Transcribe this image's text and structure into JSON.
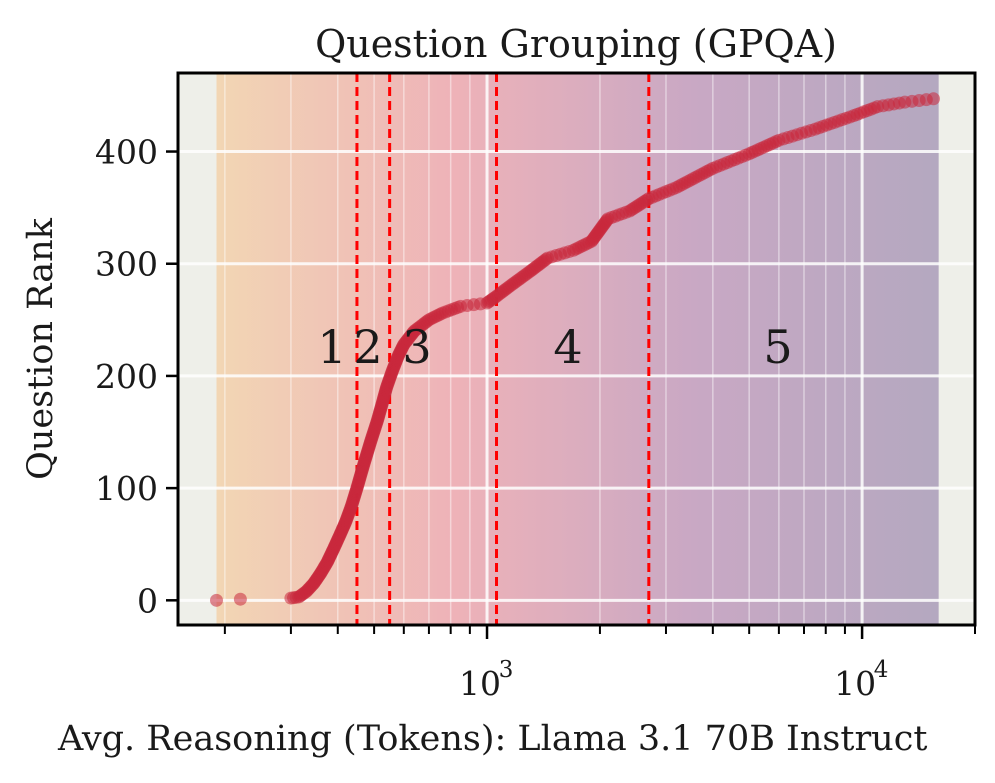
{
  "chart_data": {
    "type": "scatter",
    "title": "Question Grouping (GPQA)",
    "xlabel": "Avg. Reasoning (Tokens): Llama 3.1 70B Instruct",
    "ylabel": "Question Rank",
    "xscale": "log",
    "xlim": [
      150,
      20000
    ],
    "ylim": [
      -22,
      470
    ],
    "yticks": [
      0,
      100,
      200,
      300,
      400
    ],
    "ytick_labels": [
      "0",
      "100",
      "200",
      "300",
      "400"
    ],
    "xticks_major": [
      1000,
      10000
    ],
    "xtick_labels": [
      "10",
      "10"
    ],
    "xtick_exponents": [
      "3",
      "4"
    ],
    "grid": true,
    "legend": "none",
    "colors": {
      "background": "#eeefe9",
      "points": "#c8283c",
      "dividers": "#ff0000",
      "band_gradient": [
        "#f2d6b4",
        "#eeb2b8",
        "#c9a8c4",
        "#b4a8c0"
      ]
    },
    "bands": [
      {
        "label": "1",
        "x_start": 190,
        "x_end": 450
      },
      {
        "label": "2",
        "x_start": 450,
        "x_end": 550
      },
      {
        "label": "3",
        "x_start": 550,
        "x_end": 1060
      },
      {
        "label": "4",
        "x_start": 1060,
        "x_end": 2700
      },
      {
        "label": "5",
        "x_start": 2700,
        "x_end": 16000
      }
    ],
    "dividers": [
      450,
      550,
      1060,
      2700
    ],
    "curve_points": [
      [
        190,
        0
      ],
      [
        220,
        1
      ],
      [
        300,
        2
      ],
      [
        315,
        3
      ],
      [
        330,
        8
      ],
      [
        345,
        15
      ],
      [
        360,
        24
      ],
      [
        375,
        34
      ],
      [
        390,
        46
      ],
      [
        405,
        58
      ],
      [
        420,
        70
      ],
      [
        435,
        84
      ],
      [
        450,
        100
      ],
      [
        470,
        122
      ],
      [
        490,
        142
      ],
      [
        510,
        160
      ],
      [
        525,
        175
      ],
      [
        540,
        190
      ],
      [
        560,
        205
      ],
      [
        580,
        218
      ],
      [
        600,
        228
      ],
      [
        640,
        240
      ],
      [
        700,
        250
      ],
      [
        760,
        256
      ],
      [
        850,
        262
      ],
      [
        1000,
        265
      ],
      [
        1050,
        270
      ],
      [
        1150,
        280
      ],
      [
        1300,
        293
      ],
      [
        1450,
        305
      ],
      [
        1700,
        312
      ],
      [
        1900,
        320
      ],
      [
        2100,
        340
      ],
      [
        2400,
        347
      ],
      [
        2700,
        358
      ],
      [
        3200,
        368
      ],
      [
        4000,
        385
      ],
      [
        5000,
        398
      ],
      [
        6000,
        410
      ],
      [
        7500,
        420
      ],
      [
        9500,
        432
      ],
      [
        11000,
        440
      ],
      [
        13000,
        444
      ],
      [
        15500,
        447
      ]
    ]
  }
}
